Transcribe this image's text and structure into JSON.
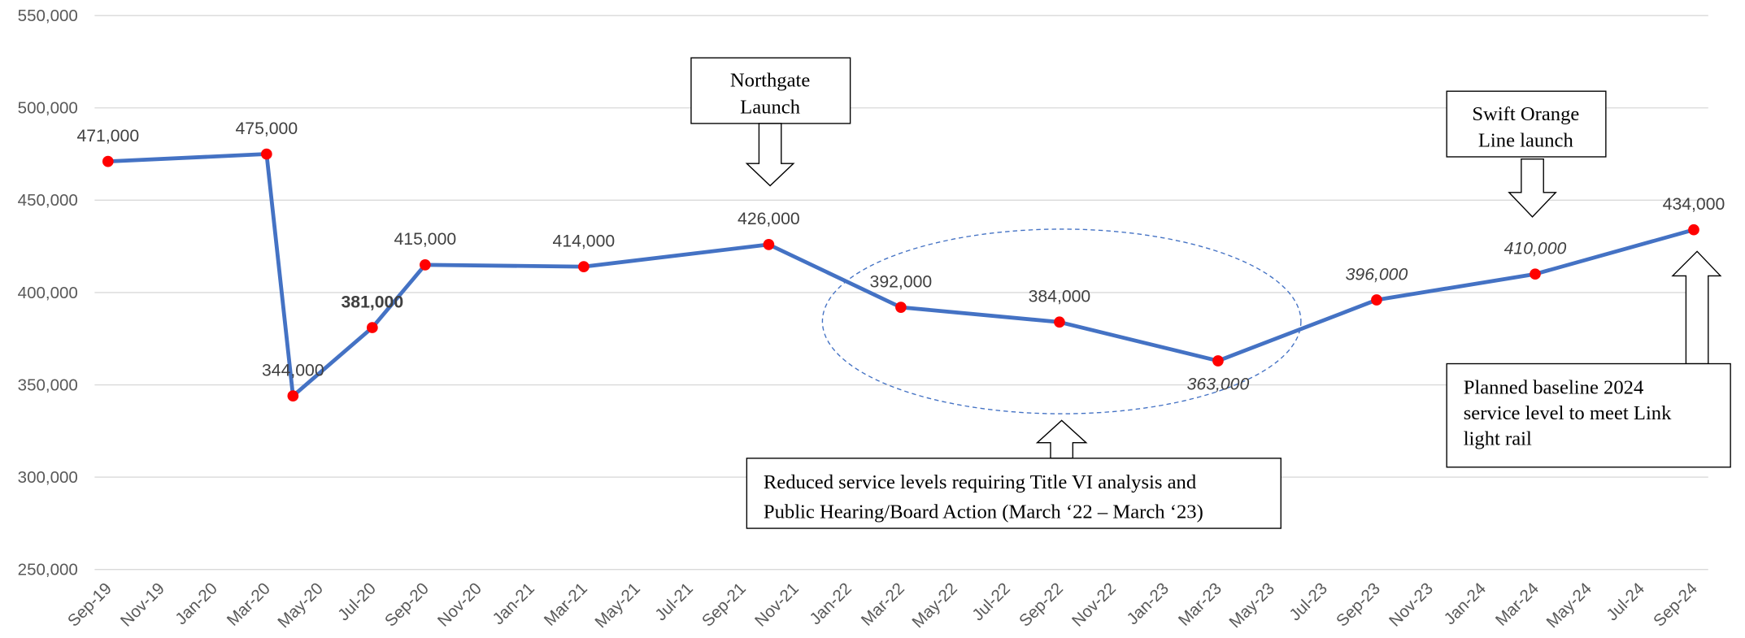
{
  "chart_data": {
    "type": "line",
    "categories": [
      "Sep-19",
      "Nov-19",
      "Jan-20",
      "Mar-20",
      "May-20",
      "Jul-20",
      "Sep-20",
      "Nov-20",
      "Jan-21",
      "Mar-21",
      "May-21",
      "Jul-21",
      "Sep-21",
      "Nov-21",
      "Jan-22",
      "Mar-22",
      "May-22",
      "Jul-22",
      "Sep-22",
      "Nov-22",
      "Jan-23",
      "Mar-23",
      "May-23",
      "Jul-23",
      "Sep-23",
      "Nov-23",
      "Jan-24",
      "Mar-24",
      "May-24",
      "Jul-24",
      "Sep-24"
    ],
    "x": [
      "Sep-19",
      "Mar-20",
      "Apr-20",
      "Jul-20",
      "Sep-20",
      "Mar-21",
      "Oct-21",
      "Mar-22",
      "Sep-22",
      "Mar-23",
      "Sep-23",
      "Mar-24",
      "Sep-24"
    ],
    "series": [
      {
        "color": "#4472c4",
        "marker_color": "#ff0000",
        "values": [
          471000,
          475000,
          344000,
          381000,
          415000,
          414000,
          426000,
          392000,
          384000,
          363000,
          396000,
          410000,
          434000
        ],
        "value_labels": [
          "471,000",
          "475,000",
          "344,000",
          "381,000",
          "415,000",
          "414,000",
          "426,000",
          "392,000",
          "384,000",
          "363,000",
          "396,000",
          "410,000",
          "434,000"
        ]
      }
    ],
    "ylim": [
      250000,
      550000
    ],
    "yticks": [
      {
        "value": 250000,
        "label": "250,000"
      },
      {
        "value": 300000,
        "label": "300,000"
      },
      {
        "value": 350000,
        "label": "350,000"
      },
      {
        "value": 400000,
        "label": "400,000"
      },
      {
        "value": 450000,
        "label": "450,000"
      },
      {
        "value": 500000,
        "label": "500,000"
      },
      {
        "value": 550000,
        "label": "550,000"
      }
    ],
    "grid": true,
    "annotations": [
      {
        "lines": [
          "Northgate",
          "Launch"
        ]
      },
      {
        "lines": [
          "Swift Orange",
          "Line launch"
        ]
      },
      {
        "lines": [
          "Reduced service levels requiring Title VI analysis and",
          "Public Hearing/Board Action (March ‘22 – March ‘23)"
        ]
      },
      {
        "lines": [
          "Planned baseline 2024",
          "service level to meet Link",
          "light rail"
        ]
      }
    ]
  }
}
